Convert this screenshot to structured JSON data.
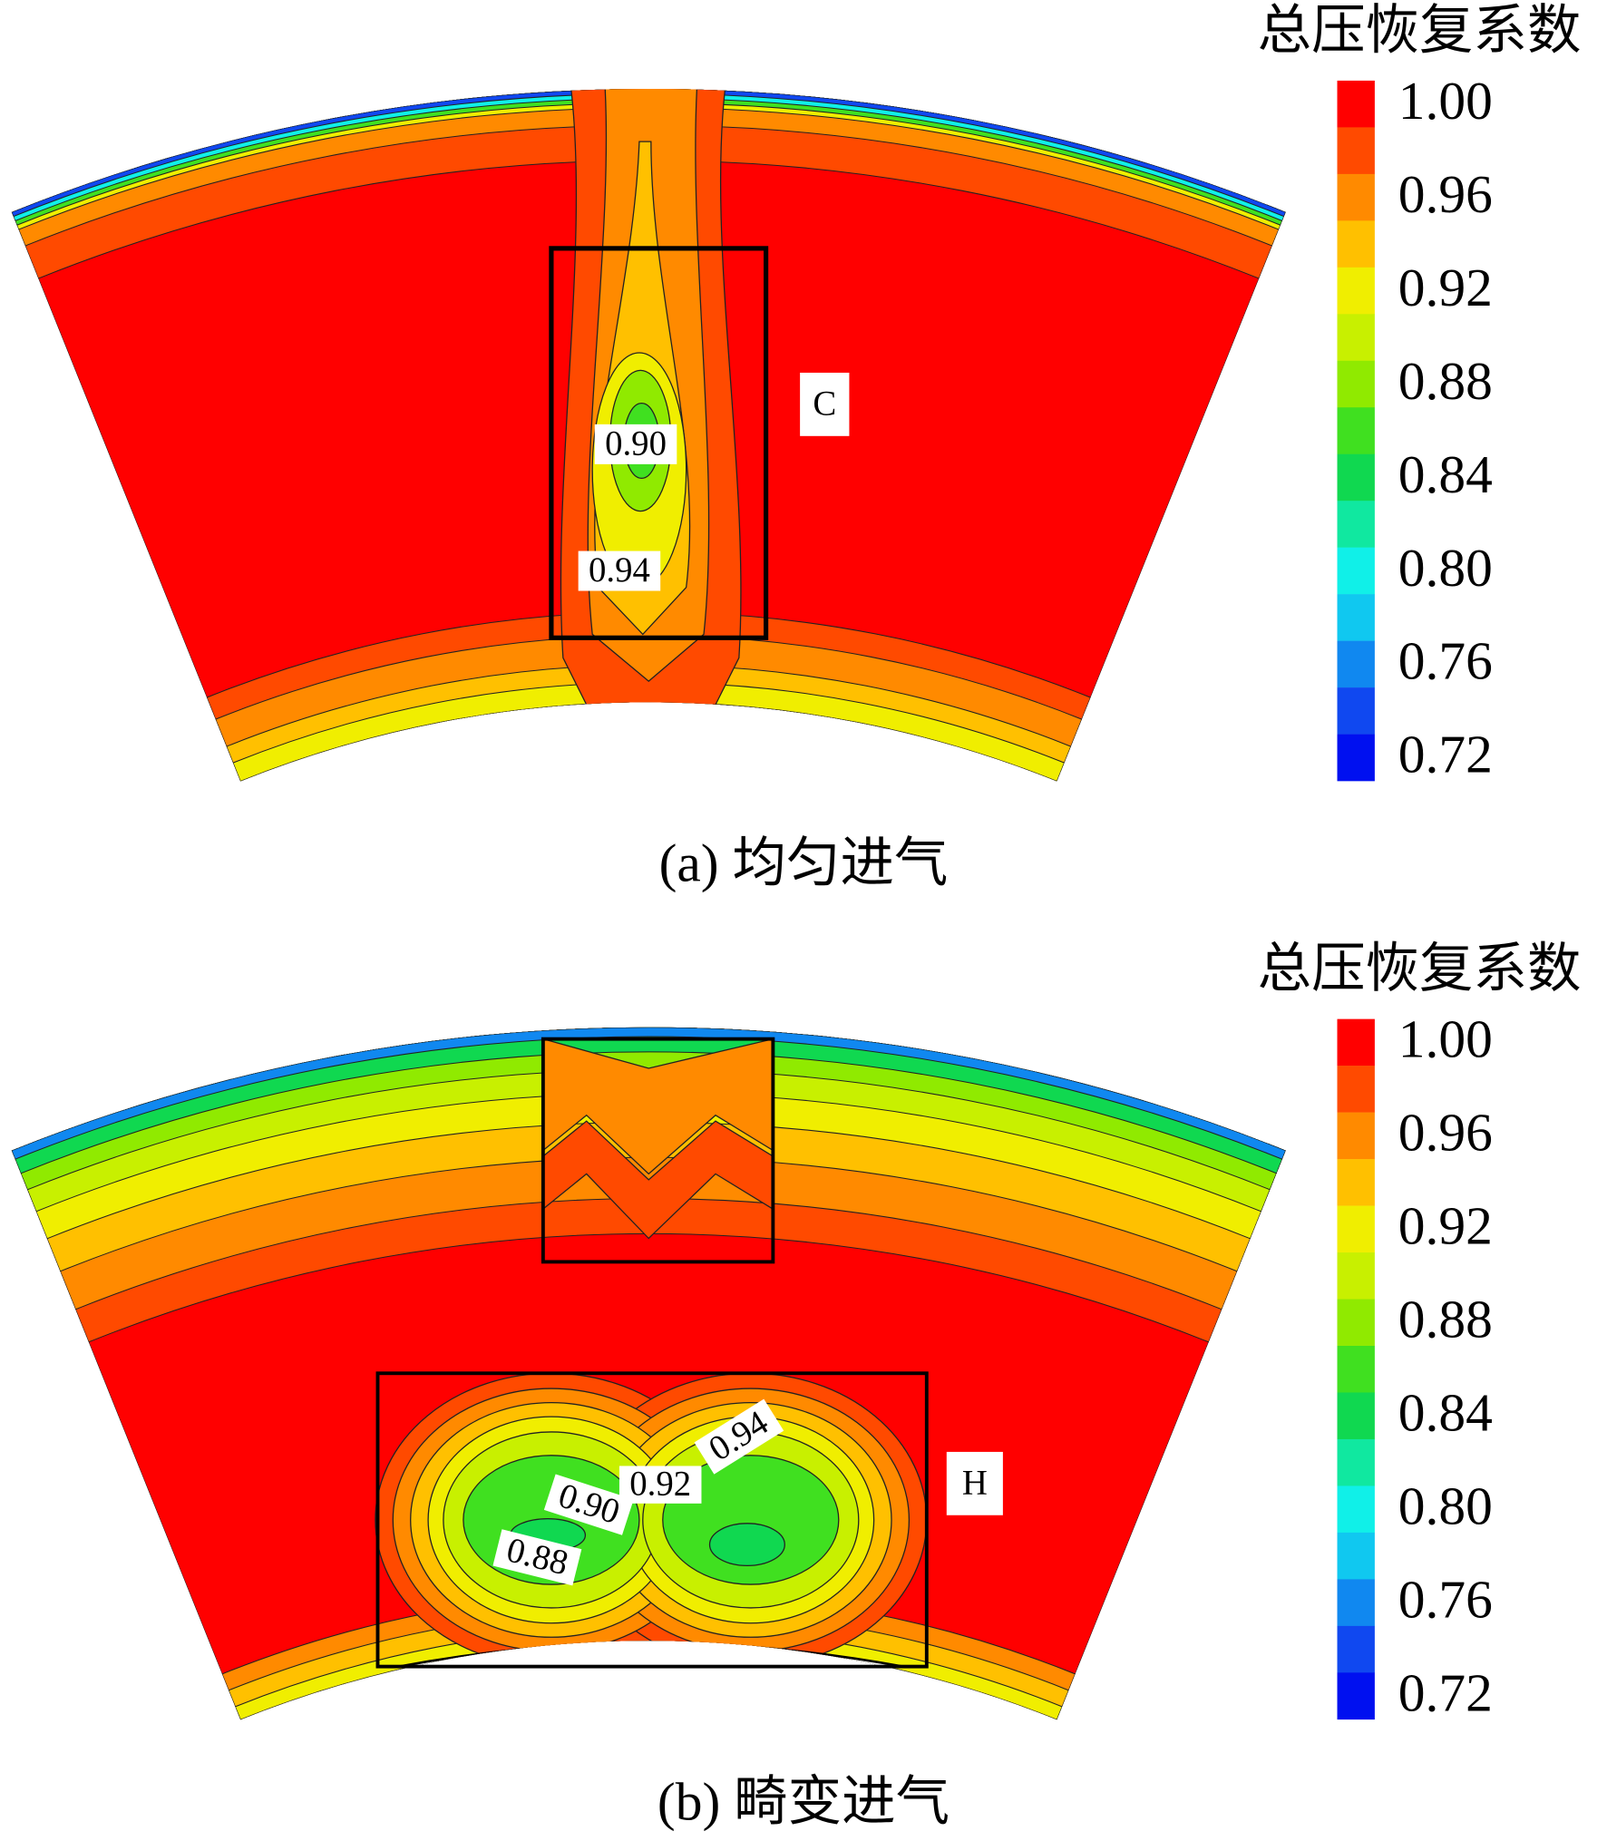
{
  "panels": [
    {
      "colorbar_title": "总压恢复系数",
      "colorbar_ticks": [
        "1.00",
        "0.96",
        "0.92",
        "0.88",
        "0.84",
        "0.80",
        "0.76",
        "0.72"
      ],
      "caption": "(a) 均匀进气",
      "region_label": "C",
      "contour_labels": [
        "0.90",
        "0.94"
      ]
    },
    {
      "colorbar_title": "总压恢复系数",
      "colorbar_ticks": [
        "1.00",
        "0.96",
        "0.92",
        "0.88",
        "0.84",
        "0.80",
        "0.76",
        "0.72"
      ],
      "caption": "(b) 畸变进气",
      "region_label": "H",
      "contour_labels": [
        "0.94",
        "0.92",
        "0.90",
        "0.88"
      ]
    }
  ],
  "colorbar_colors": [
    "#ff0000",
    "#ff4a00",
    "#ff8a00",
    "#ffc000",
    "#f0ee00",
    "#c8f000",
    "#90ea00",
    "#40e020",
    "#10d850",
    "#10e8a0",
    "#10f0e8",
    "#10c8f0",
    "#1088f0",
    "#1048f0",
    "#0010f0"
  ]
}
